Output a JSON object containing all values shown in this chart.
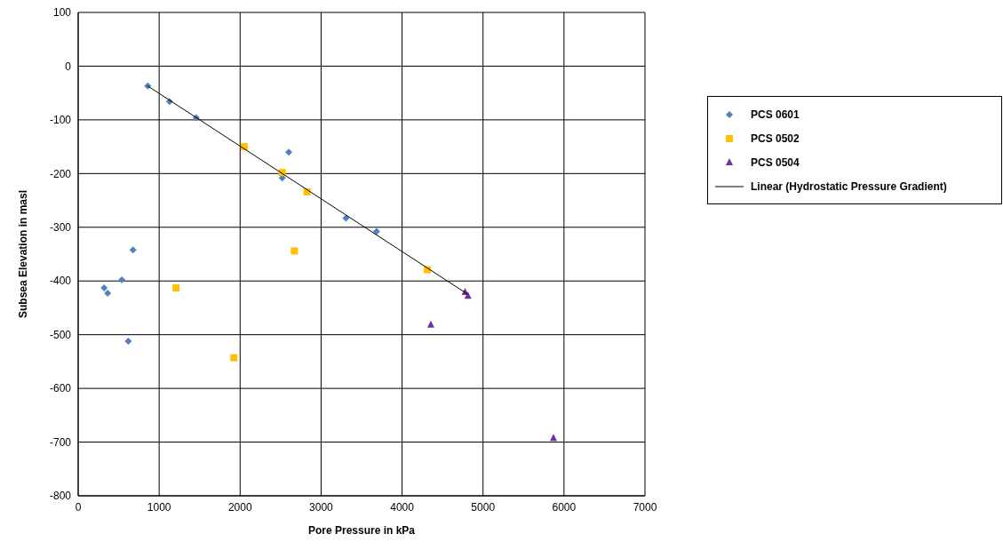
{
  "chart_data": {
    "type": "scatter",
    "xlabel": "Pore Pressure in kPa",
    "ylabel": "Subsea Elevation in masl",
    "xlim": [
      0,
      7000
    ],
    "xticks": [
      0,
      1000,
      2000,
      3000,
      4000,
      5000,
      6000,
      7000
    ],
    "ylim": [
      -800,
      100
    ],
    "yticks": [
      -800,
      -700,
      -600,
      -500,
      -400,
      -300,
      -200,
      -100,
      0,
      100
    ],
    "grid": true,
    "legend": "top right",
    "series": [
      {
        "name": "PCS 0601",
        "color": "#4f81bd",
        "marker": "diamond",
        "x": [
          859,
          1129,
          1457,
          2520,
          2600,
          3307,
          3685,
          677,
          539,
          320,
          364,
          619
        ],
        "values": [
          -37,
          -66,
          -96,
          -208,
          -160,
          -283,
          -308,
          -342,
          -398,
          -413,
          -423,
          -512
        ]
      },
      {
        "name": "PCS 0502",
        "color": "#ffc000",
        "marker": "square",
        "x": [
          2051,
          2520,
          2826,
          2670,
          1209,
          1923,
          4312
        ],
        "values": [
          -150,
          -198,
          -234,
          -344,
          -413,
          -543,
          -379
        ]
      },
      {
        "name": "PCS 0504",
        "color": "#7030a0",
        "marker": "triangle",
        "x": [
          4778,
          4814,
          4355,
          5870
        ],
        "values": [
          -421,
          -428,
          -482,
          -693
        ]
      },
      {
        "name": "Linear (Hydrostatic Pressure Gradient)",
        "type": "line",
        "color": "#000000",
        "marker": "none",
        "x": [
          859,
          4814
        ],
        "values": [
          -37,
          -425
        ]
      }
    ]
  }
}
